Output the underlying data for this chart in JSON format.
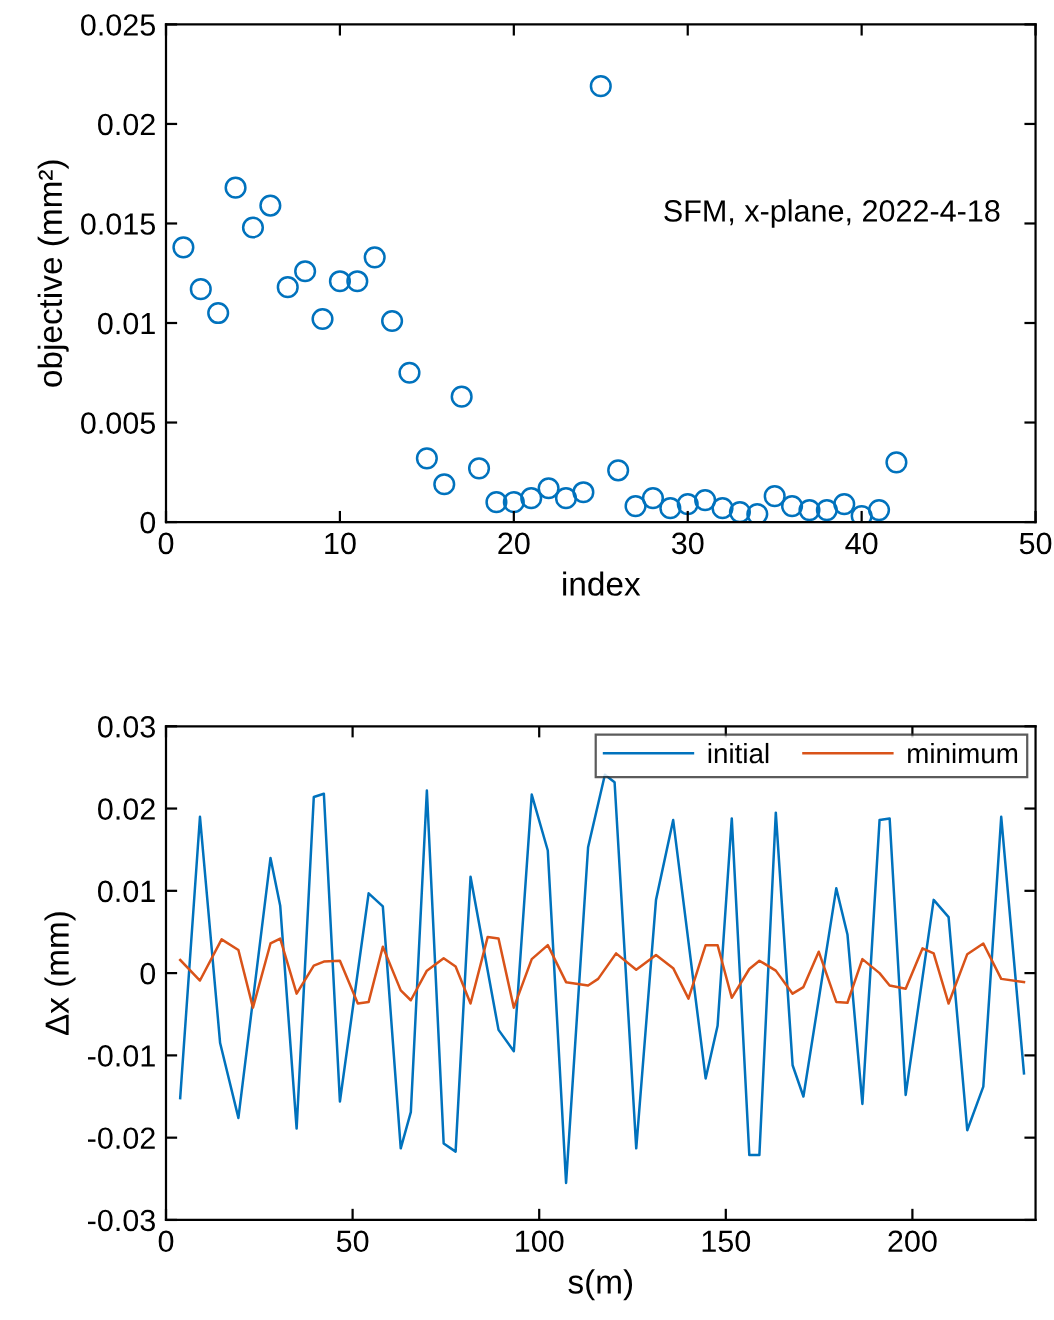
{
  "chart_data": [
    {
      "type": "scatter",
      "xlabel": "index",
      "ylabel": "objective (mm²)",
      "annotations": [
        "SFM, x-plane, 2022-4-18"
      ],
      "marker": "circle",
      "grid": false,
      "legend": false,
      "x": [
        1,
        2,
        3,
        4,
        5,
        6,
        7,
        8,
        9,
        10,
        11,
        12,
        13,
        14,
        15,
        16,
        17,
        18,
        19,
        20,
        21,
        22,
        23,
        24,
        25,
        26,
        27,
        28,
        29,
        30,
        31,
        32,
        33,
        34,
        35,
        36,
        37,
        38,
        39,
        40,
        41,
        42
      ],
      "series": [
        {
          "color": "#0072bd",
          "values": [
            0.0138,
            0.0117,
            0.0105,
            0.0168,
            0.0148,
            0.0159,
            0.0118,
            0.0126,
            0.0102,
            0.0121,
            0.0121,
            0.0133,
            0.0101,
            0.0075,
            0.0032,
            0.0019,
            0.0063,
            0.0027,
            0.001,
            0.001,
            0.0012,
            0.0017,
            0.0012,
            0.0015,
            0.0219,
            0.0026,
            0.0008,
            0.0012,
            0.0007,
            0.0009,
            0.0011,
            0.0007,
            0.0005,
            0.0004,
            0.0013,
            0.0008,
            0.0006,
            0.0006,
            0.0009,
            0.0003,
            0.0006,
            0.003
          ]
        }
      ],
      "xlim": [
        0,
        50
      ],
      "xticks": [
        0,
        10,
        20,
        30,
        40,
        50
      ],
      "ylim": [
        0,
        0.025
      ],
      "yticks": [
        0,
        0.005,
        0.01,
        0.015,
        0.02,
        0.025
      ]
    },
    {
      "type": "line",
      "xlabel": "s(m)",
      "ylabel": "Δx (mm)",
      "marker": "none",
      "line_style": "solid",
      "grid": false,
      "legend": "top right",
      "series": [
        {
          "name": "initial",
          "color": "#0072bd",
          "x": [
            3.8,
            9.1,
            14.5,
            19.4,
            28,
            30.6,
            35,
            39.6,
            42.3,
            46.6,
            54.3,
            58.1,
            62.9,
            65.6,
            69.9,
            74.4,
            77.6,
            81.6,
            89.1,
            93.2,
            98,
            102.3,
            107.2,
            113.1,
            117.6,
            120.2,
            126,
            131.3,
            135.9,
            144.6,
            147.8,
            151.6,
            156.3,
            159,
            163.4,
            167.9,
            170.8,
            179.6,
            182.6,
            186.6,
            191.2,
            193.9,
            198.2,
            205.7,
            209.7,
            214.7,
            219,
            223.8,
            229.9
          ],
          "values": [
            -0.0152,
            0.019,
            -0.0085,
            -0.0176,
            0.014,
            0.0082,
            -0.0189,
            0.0214,
            0.0218,
            -0.0156,
            0.0097,
            0.0081,
            -0.0213,
            -0.0169,
            0.0222,
            -0.0207,
            -0.0217,
            0.0117,
            -0.0069,
            -0.0095,
            0.0217,
            0.0149,
            -0.0255,
            0.0153,
            0.0241,
            0.0232,
            -0.0213,
            0.0089,
            0.0186,
            -0.0128,
            -0.0064,
            0.0188,
            -0.0221,
            -0.0221,
            0.0195,
            -0.0112,
            -0.015,
            0.0103,
            0.0047,
            -0.0159,
            0.0186,
            0.0188,
            -0.0148,
            0.0089,
            0.0068,
            -0.0191,
            -0.0138,
            0.019,
            -0.0122
          ]
        },
        {
          "name": "minimum",
          "color": "#d95319",
          "x": [
            3.8,
            9.1,
            14.9,
            19.4,
            23.3,
            28,
            30.6,
            35,
            39.6,
            42.3,
            46.6,
            51.4,
            54.3,
            58.1,
            62.9,
            65.6,
            69.9,
            74.4,
            77.6,
            81.6,
            86.2,
            89.1,
            93.2,
            98,
            102.3,
            107.2,
            113.1,
            115.8,
            120.6,
            126,
            131.3,
            135.9,
            140,
            144.6,
            147.8,
            151.6,
            156.3,
            159,
            163.4,
            167.9,
            170.8,
            174.9,
            179.6,
            182.6,
            186.6,
            191.2,
            193.9,
            198.2,
            202.7,
            205.7,
            209.7,
            214.7,
            219,
            223.8,
            229.9
          ],
          "values": [
            0.0016,
            -0.0009,
            0.0041,
            0.0028,
            -0.0042,
            0.0036,
            0.0042,
            -0.0025,
            0.0009,
            0.0014,
            0.0015,
            -0.0037,
            -0.0035,
            0.0032,
            -0.0021,
            -0.0033,
            0.0003,
            0.0018,
            0.0008,
            -0.0037,
            0.0044,
            0.0042,
            -0.0042,
            0.0017,
            0.0034,
            -0.0011,
            -0.0015,
            -0.0007,
            0.0024,
            0.0004,
            0.0022,
            0.0006,
            -0.0031,
            0.0034,
            0.0034,
            -0.003,
            0.0005,
            0.0015,
            0.0003,
            -0.0025,
            -0.0017,
            0.0026,
            -0.0035,
            -0.0036,
            0.0017,
            0.0,
            -0.0015,
            -0.0019,
            0.003,
            0.0024,
            -0.0037,
            0.0023,
            0.0036,
            -0.0007,
            -0.0011
          ]
        }
      ],
      "xlim": [
        0,
        233
      ],
      "xticks": [
        0,
        50,
        100,
        150,
        200
      ],
      "ylim": [
        -0.03,
        0.03
      ],
      "yticks": [
        -0.03,
        -0.02,
        -0.01,
        0,
        0.01,
        0.02,
        0.03
      ]
    }
  ]
}
